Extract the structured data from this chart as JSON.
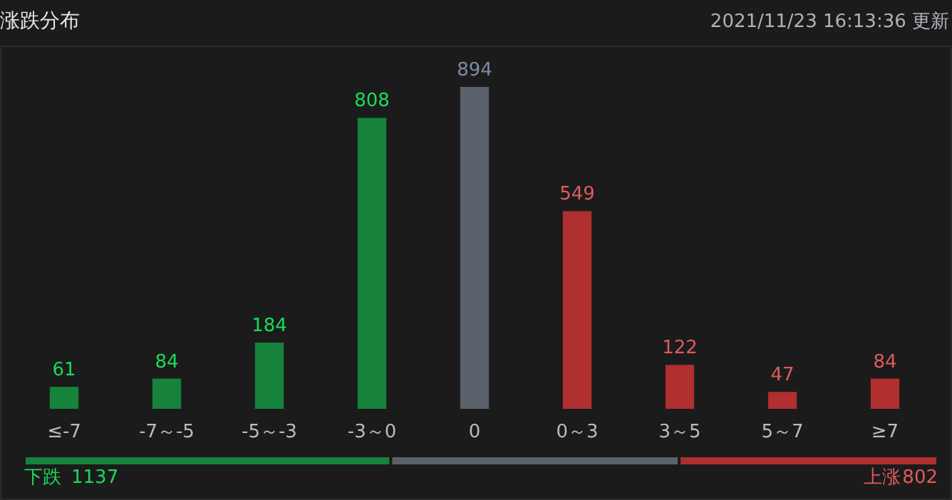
{
  "chart_data": [
    {
      "type": "bar",
      "title": "涨跌分布",
      "subtitle": "2021/11/23 16:13:36 更新",
      "categories": [
        "≤-7",
        "-7～-5",
        "-5～-3",
        "-3～0",
        "0",
        "0～3",
        "3～5",
        "5～7",
        "≥7"
      ],
      "values": [
        61,
        84,
        184,
        808,
        894,
        549,
        122,
        47,
        84
      ],
      "colors": [
        "#17823c",
        "#17823c",
        "#17823c",
        "#17823c",
        "#5b616b",
        "#b02f2f",
        "#b02f2f",
        "#b02f2f",
        "#b02f2f"
      ],
      "data_labels": true
    },
    {
      "type": "bar",
      "orientation": "horizontal",
      "stacked": true,
      "categories": [
        null
      ],
      "series": [
        {
          "name": "下跌",
          "color": "#17823c",
          "values": [
            1137
          ],
          "value_labels": [
            "1137"
          ]
        },
        {
          "color": "#5b616b",
          "values": [
            894
          ]
        },
        {
          "name": "上涨",
          "color": "#b02f2f",
          "values": [
            802
          ],
          "value_labels": [
            "802"
          ]
        }
      ]
    }
  ]
}
